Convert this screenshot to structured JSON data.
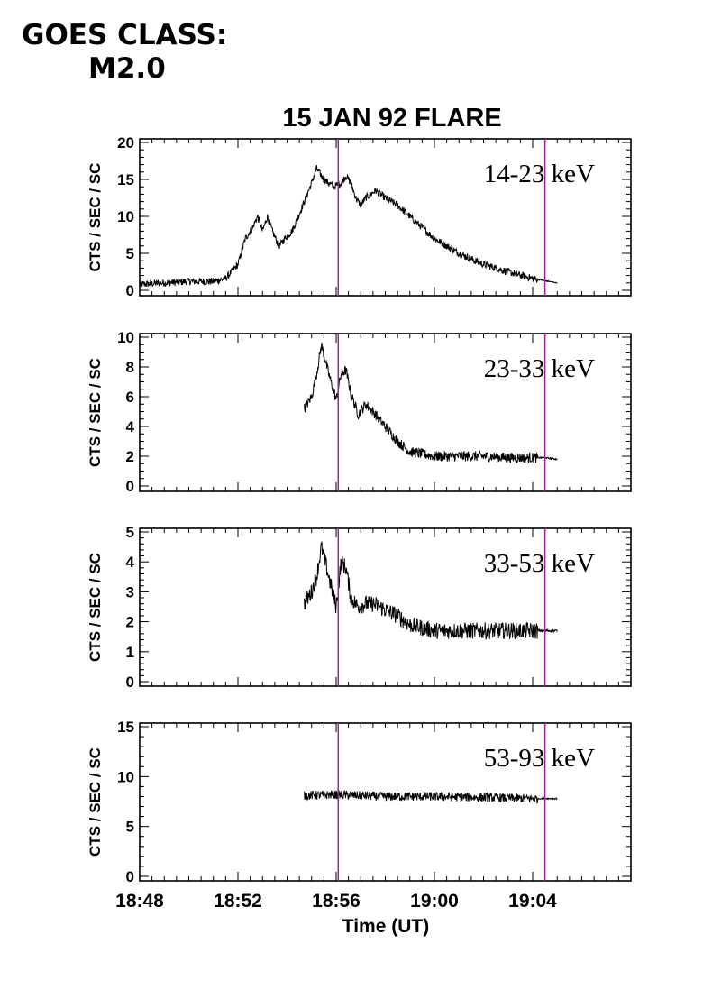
{
  "header": {
    "goes_line1": "GOES CLASS:",
    "goes_line2": "M2.0"
  },
  "chart_data": {
    "type": "line",
    "title": "15 JAN 92 FLARE",
    "xlabel": "Time (UT)",
    "x_tick_labels": [
      "18:48",
      "18:52",
      "18:56",
      "19:00",
      "19:04"
    ],
    "x_range_minutes_after_1848": [
      0,
      20
    ],
    "markers_UT": [
      "18:56:05",
      "19:04:30"
    ],
    "marker_color": "#a020a0",
    "line_color": "#000000",
    "panels": [
      {
        "label": "14-23 keV",
        "ylabel": "CTS / SEC / SC",
        "ylim": [
          0,
          20
        ],
        "yticks": [
          0,
          5,
          10,
          15,
          20
        ],
        "noise": 0.5,
        "series": {
          "x": [
            0,
            1,
            2,
            3,
            3.5,
            4,
            4.3,
            4.6,
            4.8,
            5.0,
            5.2,
            5.4,
            5.6,
            5.7,
            5.9,
            6.2,
            6.4,
            7.0,
            7.2,
            7.5,
            7.9,
            8.2,
            8.4,
            8.6,
            8.8,
            9.0,
            9.2,
            9.4,
            9.6,
            9.8,
            10.0,
            10.5,
            11.0,
            11.5,
            12,
            13,
            14,
            15,
            16,
            16.5,
            17.0
          ],
          "y": [
            0.8,
            1.0,
            1.2,
            1.2,
            1.6,
            3.5,
            7.0,
            8.5,
            10.0,
            8.0,
            10.0,
            8.0,
            6.5,
            6.0,
            7.0,
            8.0,
            9.5,
            14.5,
            16.5,
            15.0,
            14.0,
            14.5,
            15.5,
            14.5,
            12.5,
            11.5,
            12.5,
            13.0,
            13.5,
            13.0,
            12.5,
            11.5,
            10.0,
            8.5,
            7.0,
            5.0,
            3.5,
            2.5,
            1.6,
            1.3,
            1.0
          ]
        }
      },
      {
        "label": "23-33 keV",
        "ylabel": "CTS / SEC / SC",
        "ylim": [
          0,
          10
        ],
        "yticks": [
          0,
          2,
          4,
          6,
          8,
          10
        ],
        "noise": 0.35,
        "series": {
          "x": [
            6.7,
            7.0,
            7.2,
            7.4,
            7.7,
            8.0,
            8.2,
            8.4,
            8.6,
            8.9,
            9.2,
            9.5,
            10.0,
            10.5,
            11.0,
            12,
            13,
            14,
            15,
            16,
            16.5,
            17.0
          ],
          "y": [
            5.2,
            6.0,
            7.5,
            9.5,
            7.5,
            5.8,
            7.5,
            7.8,
            6.2,
            4.8,
            5.5,
            5.0,
            4.0,
            3.0,
            2.3,
            2.0,
            2.0,
            2.0,
            1.9,
            1.9,
            1.9,
            1.8
          ]
        }
      },
      {
        "label": "33-53 keV",
        "ylabel": "CTS / SEC / SC",
        "ylim": [
          0,
          5
        ],
        "yticks": [
          0,
          1,
          2,
          3,
          4,
          5
        ],
        "noise": 0.28,
        "series": {
          "x": [
            6.7,
            7.0,
            7.2,
            7.4,
            7.7,
            8.0,
            8.2,
            8.4,
            8.6,
            8.9,
            9.2,
            9.5,
            10.0,
            10.5,
            11.0,
            12,
            13,
            14,
            15,
            16,
            16.5,
            17.0
          ],
          "y": [
            2.6,
            3.0,
            3.5,
            4.5,
            3.5,
            2.5,
            4.0,
            3.8,
            2.8,
            2.5,
            2.6,
            2.6,
            2.4,
            2.2,
            1.9,
            1.7,
            1.7,
            1.7,
            1.7,
            1.7,
            1.7,
            1.7
          ]
        }
      },
      {
        "label": "53-93 keV",
        "ylabel": "CTS / SEC / SC",
        "ylim": [
          0,
          15
        ],
        "yticks": [
          0,
          5,
          10,
          15
        ],
        "noise": 0.45,
        "series": {
          "x": [
            6.7,
            8,
            10,
            12,
            14,
            16,
            17
          ],
          "y": [
            8.1,
            8.2,
            8.0,
            8.0,
            7.9,
            7.8,
            7.8
          ]
        }
      }
    ]
  }
}
